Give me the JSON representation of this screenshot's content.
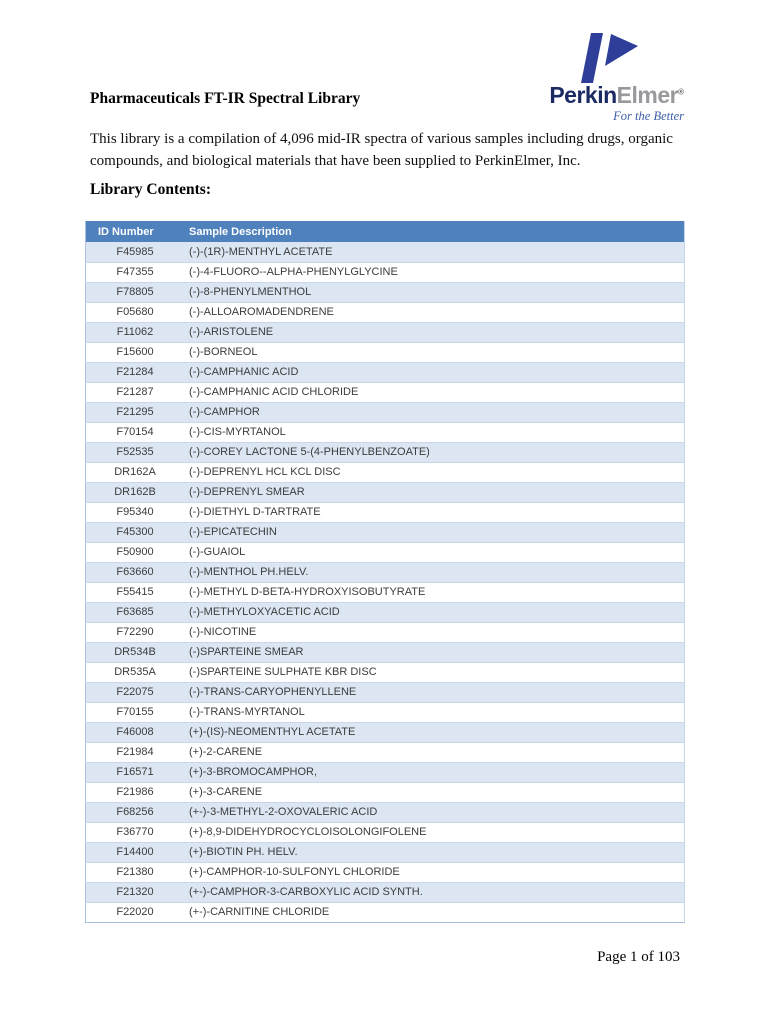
{
  "logo": {
    "brand_primary": "Perkin",
    "brand_secondary": "Elmer",
    "registered_mark": "®",
    "tagline": "For the Better",
    "mark_color": "#2f3e99",
    "primary_color": "#1b2a63",
    "secondary_color": "#97999c",
    "tagline_color": "#3d5da8"
  },
  "document": {
    "title": "Pharmaceuticals FT-IR Spectral Library",
    "intro": "This library is a compilation of 4,096 mid-IR spectra of various samples including drugs, organic compounds, and biological materials that have been supplied to PerkinElmer, Inc.",
    "section_heading": "Library Contents:"
  },
  "table": {
    "columns": [
      "ID Number",
      "Sample Description"
    ],
    "header_bg": "#4f81bd",
    "banded_row_bg": "#dce6f2",
    "border_color": "#a9c0e0",
    "rows": [
      {
        "id": "F45985",
        "description": "(-)-(1R)-MENTHYL ACETATE"
      },
      {
        "id": "F47355",
        "description": "(-)-4-FLUORO--ALPHA-PHENYLGLYCINE"
      },
      {
        "id": "F78805",
        "description": "(-)-8-PHENYLMENTHOL"
      },
      {
        "id": "F05680",
        "description": "(-)-ALLOAROMADENDRENE"
      },
      {
        "id": "F11062",
        "description": "(-)-ARISTOLENE"
      },
      {
        "id": "F15600",
        "description": "(-)-BORNEOL"
      },
      {
        "id": "F21284",
        "description": "(-)-CAMPHANIC ACID"
      },
      {
        "id": "F21287",
        "description": "(-)-CAMPHANIC ACID CHLORIDE"
      },
      {
        "id": "F21295",
        "description": "(-)-CAMPHOR"
      },
      {
        "id": "F70154",
        "description": "(-)-CIS-MYRTANOL"
      },
      {
        "id": "F52535",
        "description": "(-)-COREY LACTONE 5-(4-PHENYLBENZOATE)"
      },
      {
        "id": "DR162A",
        "description": "(-)-DEPRENYL HCL KCL DISC"
      },
      {
        "id": "DR162B",
        "description": "(-)-DEPRENYL SMEAR"
      },
      {
        "id": "F95340",
        "description": "(-)-DIETHYL D-TARTRATE"
      },
      {
        "id": "F45300",
        "description": "(-)-EPICATECHIN"
      },
      {
        "id": "F50900",
        "description": "(-)-GUAIOL"
      },
      {
        "id": "F63660",
        "description": "(-)-MENTHOL PH.HELV."
      },
      {
        "id": "F55415",
        "description": "(-)-METHYL D-BETA-HYDROXYISOBUTYRATE"
      },
      {
        "id": "F63685",
        "description": "(-)-METHYLOXYACETIC ACID"
      },
      {
        "id": "F72290",
        "description": "(-)-NICOTINE"
      },
      {
        "id": "DR534B",
        "description": "(-)SPARTEINE SMEAR"
      },
      {
        "id": "DR535A",
        "description": "(-)SPARTEINE SULPHATE KBR DISC"
      },
      {
        "id": "F22075",
        "description": "(-)-TRANS-CARYOPHENYLLENE"
      },
      {
        "id": "F70155",
        "description": "(-)-TRANS-MYRTANOL"
      },
      {
        "id": "F46008",
        "description": "(+)-(IS)-NEOMENTHYL ACETATE"
      },
      {
        "id": "F21984",
        "description": "(+)-2-CARENE"
      },
      {
        "id": "F16571",
        "description": "(+)-3-BROMOCAMPHOR,"
      },
      {
        "id": "F21986",
        "description": "(+)-3-CARENE"
      },
      {
        "id": "F68256",
        "description": "(+-)-3-METHYL-2-OXOVALERIC ACID"
      },
      {
        "id": "F36770",
        "description": "(+)-8,9-DIDEHYDROCYCLOISOLONGIFOLENE"
      },
      {
        "id": "F14400",
        "description": "(+)-BIOTIN PH. HELV."
      },
      {
        "id": "F21380",
        "description": "(+)-CAMPHOR-10-SULFONYL CHLORIDE"
      },
      {
        "id": "F21320",
        "description": "(+-)-CAMPHOR-3-CARBOXYLIC ACID SYNTH."
      },
      {
        "id": "F22020",
        "description": "(+-)-CARNITINE CHLORIDE"
      }
    ]
  },
  "footer": {
    "page_label": "Page 1 of 103"
  }
}
